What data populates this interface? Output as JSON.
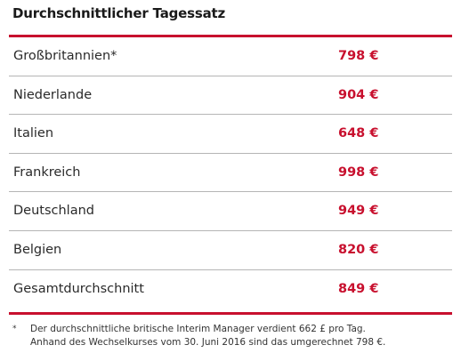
{
  "title": "Durchschnittlicher Tagessatz",
  "chart_data": {
    "type": "table",
    "title": "Durchschnittlicher Tagessatz",
    "unit": "€",
    "rows": [
      {
        "country": "Großbritannien*",
        "rate": "798 €",
        "value": 798
      },
      {
        "country": "Niederlande",
        "rate": "904 €",
        "value": 904
      },
      {
        "country": "Italien",
        "rate": "648 €",
        "value": 648
      },
      {
        "country": "Frankreich",
        "rate": "998 €",
        "value": 998
      },
      {
        "country": "Deutschland",
        "rate": "949 €",
        "value": 949
      },
      {
        "country": "Belgien",
        "rate": "820 €",
        "value": 820
      },
      {
        "country": "Gesamtdurchschnitt",
        "rate": "849 €",
        "value": 849
      }
    ]
  },
  "footnote": {
    "marker": "*",
    "line1": "Der durchschnittliche britische Interim Manager verdient 662 £ pro Tag.",
    "line2": "Anhand des Wechselkurses vom 30. Juni 2016 sind das umgerechnet 798 €."
  },
  "colors": {
    "accent": "#c8102e",
    "text": "#1a1a1a",
    "divider": "#b5b5b5"
  }
}
